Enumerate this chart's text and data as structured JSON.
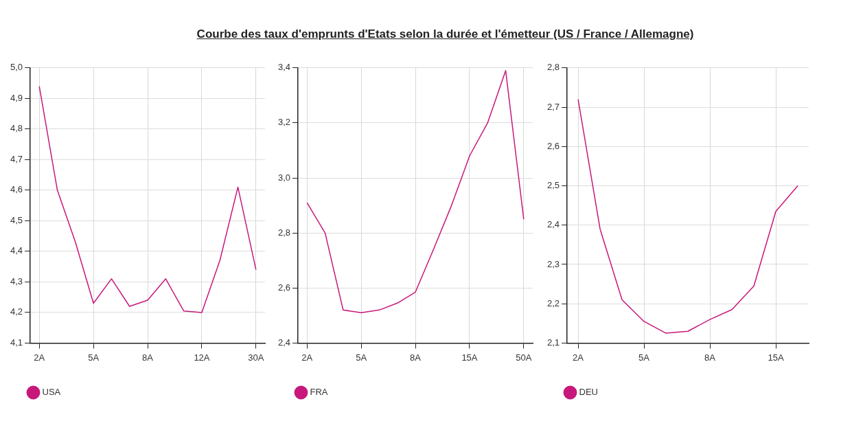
{
  "chart_data": [
    {
      "type": "line",
      "title": "Courbe des taux d'emprunts d'Etats selon la durée et l'émetteur (US / France / Allemagne)",
      "categories": [
        "2A",
        null,
        null,
        "5A",
        null,
        null,
        "8A",
        null,
        null,
        "12A",
        null,
        null,
        "30A"
      ],
      "series": [
        {
          "name": "USA",
          "color": "#c8177a",
          "values": [
            4.94,
            4.6,
            4.43,
            4.23,
            4.31,
            4.22,
            4.24,
            4.31,
            4.205,
            4.2,
            4.37,
            4.61,
            4.34
          ]
        }
      ],
      "ylim": [
        4.1,
        5.0
      ],
      "yticks": [
        {
          "value": 4.1,
          "label": "4,1"
        },
        {
          "value": 4.2,
          "label": "4,2"
        },
        {
          "value": 4.3,
          "label": "4,3"
        },
        {
          "value": 4.4,
          "label": "4,4"
        },
        {
          "value": 4.5,
          "label": "4,5"
        },
        {
          "value": 4.6,
          "label": "4,6"
        },
        {
          "value": 4.7,
          "label": "4,7"
        },
        {
          "value": 4.8,
          "label": "4,8"
        },
        {
          "value": 4.9,
          "label": "4,9"
        },
        {
          "value": 5.0,
          "label": "5,0"
        }
      ],
      "grid": true,
      "legend": "bottom left",
      "marker": "none",
      "line_style": "solid"
    },
    {
      "type": "line",
      "categories": [
        "2A",
        null,
        null,
        "5A",
        null,
        null,
        "8A",
        null,
        null,
        "15A",
        null,
        null,
        "50A"
      ],
      "series": [
        {
          "name": "FRA",
          "color": "#c8177a",
          "values": [
            2.91,
            2.8,
            2.52,
            2.51,
            2.52,
            2.545,
            2.585,
            2.74,
            2.9,
            3.08,
            3.2,
            3.39,
            2.85
          ]
        }
      ],
      "ylim": [
        2.4,
        3.4
      ],
      "yticks": [
        {
          "value": 2.4,
          "label": "2,4"
        },
        {
          "value": 2.6,
          "label": "2,6"
        },
        {
          "value": 2.8,
          "label": "2,8"
        },
        {
          "value": 3.0,
          "label": "3,0"
        },
        {
          "value": 3.2,
          "label": "3,2"
        },
        {
          "value": 3.4,
          "label": "3,4"
        }
      ],
      "grid": true,
      "legend": "bottom left",
      "marker": "none",
      "line_style": "solid"
    },
    {
      "type": "line",
      "categories": [
        "2A",
        null,
        null,
        "5A",
        null,
        null,
        "8A",
        null,
        null,
        "15A",
        null
      ],
      "series": [
        {
          "name": "DEU",
          "color": "#c8177a",
          "values": [
            2.72,
            2.39,
            2.21,
            2.155,
            2.125,
            2.13,
            2.16,
            2.185,
            2.245,
            2.435,
            2.5
          ]
        }
      ],
      "ylim": [
        2.1,
        2.8
      ],
      "yticks": [
        {
          "value": 2.1,
          "label": "2,1"
        },
        {
          "value": 2.2,
          "label": "2,2"
        },
        {
          "value": 2.3,
          "label": "2,3"
        },
        {
          "value": 2.4,
          "label": "2,4"
        },
        {
          "value": 2.5,
          "label": "2,5"
        },
        {
          "value": 2.6,
          "label": "2,6"
        },
        {
          "value": 2.7,
          "label": "2,7"
        },
        {
          "value": 2.8,
          "label": "2,8"
        }
      ],
      "grid": true,
      "legend": "bottom left",
      "marker": "none",
      "line_style": "solid"
    }
  ]
}
